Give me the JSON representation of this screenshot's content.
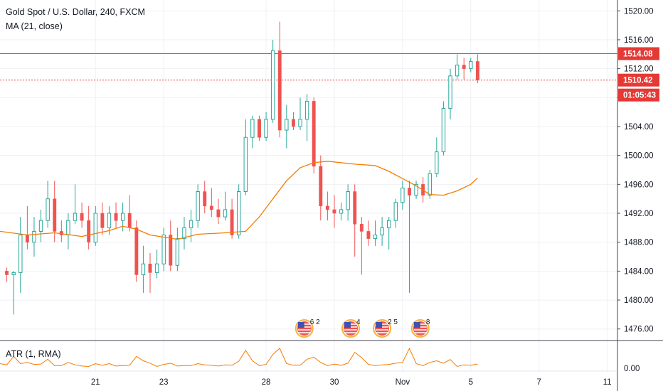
{
  "legend": {
    "symbol": "Gold Spot / U.S. Dollar, 240, FXCM",
    "ma": "MA (21, close)",
    "atr": "ATR (1, RMA)"
  },
  "colors": {
    "up": "#26a69a",
    "down": "#ef5350",
    "ma": "#f57c00",
    "atr": "#f57c00",
    "resistance": "#e53935",
    "grid": "#eef1f5",
    "axis_text": "#131722"
  },
  "price_tags": {
    "resistance": "1514.08",
    "last": "1510.42",
    "countdown": "01:05:43"
  },
  "events": [
    {
      "label": "6 2",
      "icon": "us-flag-icon",
      "x": 44.6
    },
    {
      "label": "4",
      "icon": "us-flag-icon",
      "x": 51.4
    },
    {
      "label": "2 5",
      "icon": "us-flag-icon",
      "x": 56.0
    },
    {
      "label": "8",
      "icon": "us-flag-icon",
      "x": 61.6
    }
  ],
  "chart_data": {
    "type": "candlestick",
    "title": "Gold Spot / U.S. Dollar, 240, FXCM",
    "y_ticks": [
      "1520.00",
      "1516.00",
      "1512.00",
      "1508.00",
      "1504.00",
      "1500.00",
      "1496.00",
      "1492.00",
      "1488.00",
      "1484.00",
      "1480.00",
      "1476.00"
    ],
    "y_tick_values": [
      1520,
      1516,
      1512,
      1508,
      1504,
      1500,
      1496,
      1492,
      1488,
      1484,
      1480,
      1476
    ],
    "ylim": [
      1474.5,
      1521.5
    ],
    "x_ticks": [
      {
        "label": "21",
        "x": 14
      },
      {
        "label": "23",
        "x": 24
      },
      {
        "label": "28",
        "x": 39
      },
      {
        "label": "30",
        "x": 49
      },
      {
        "label": "Nov",
        "x": 59
      },
      {
        "label": "5",
        "x": 69
      },
      {
        "label": "7",
        "x": 79
      },
      {
        "label": "11",
        "x": 89
      }
    ],
    "xlim": [
      0,
      90.5
    ],
    "grid": true,
    "candles": [
      [
        1,
        1484,
        1484.5,
        1482.5,
        1483.5
      ],
      [
        2,
        1483.5,
        1484,
        1478,
        1483.8
      ],
      [
        3,
        1483.8,
        1491.5,
        1481,
        1489
      ],
      [
        4,
        1489,
        1493,
        1487,
        1488
      ],
      [
        5,
        1488,
        1491.5,
        1486,
        1489.5
      ],
      [
        6,
        1489.5,
        1492.5,
        1488,
        1491
      ],
      [
        7,
        1491,
        1496.5,
        1490,
        1494
      ],
      [
        8,
        1494,
        1496.5,
        1488,
        1489.5
      ],
      [
        9,
        1489.5,
        1491,
        1488,
        1489
      ],
      [
        10,
        1489,
        1492,
        1487,
        1491
      ],
      [
        11,
        1491,
        1496,
        1490.5,
        1492
      ],
      [
        12,
        1492,
        1493.5,
        1490,
        1491
      ],
      [
        13,
        1491,
        1493,
        1487,
        1488
      ],
      [
        14,
        1488,
        1493,
        1487.5,
        1492
      ],
      [
        15,
        1492,
        1493.5,
        1489,
        1490
      ],
      [
        16,
        1490,
        1493,
        1489,
        1492
      ],
      [
        17,
        1492,
        1493.5,
        1490,
        1491
      ],
      [
        18,
        1491,
        1493.5,
        1489.5,
        1492
      ],
      [
        19,
        1492,
        1494.5,
        1489.5,
        1490
      ],
      [
        20,
        1490,
        1491,
        1482.5,
        1483.5
      ],
      [
        21,
        1483.5,
        1487.5,
        1481,
        1485
      ],
      [
        22,
        1485,
        1486.5,
        1481,
        1483.8
      ],
      [
        23,
        1483.8,
        1487,
        1483,
        1485
      ],
      [
        24,
        1485,
        1490,
        1484,
        1489
      ],
      [
        25,
        1489,
        1491,
        1484,
        1484.8
      ],
      [
        26,
        1484.8,
        1490,
        1484,
        1488.5
      ],
      [
        27,
        1488.5,
        1491.5,
        1487,
        1490
      ],
      [
        28,
        1490,
        1492.5,
        1488,
        1491
      ],
      [
        29,
        1491,
        1496,
        1490,
        1495
      ],
      [
        30,
        1495,
        1496.5,
        1492,
        1493
      ],
      [
        31,
        1493,
        1495.5,
        1491.5,
        1492.5
      ],
      [
        32,
        1492.5,
        1494,
        1490.5,
        1491.5
      ],
      [
        33,
        1491.5,
        1495,
        1491,
        1492.5
      ],
      [
        34,
        1492.5,
        1494,
        1488.5,
        1489
      ],
      [
        35,
        1489,
        1496,
        1488.5,
        1495
      ],
      [
        36,
        1495,
        1505,
        1494.5,
        1502.5
      ],
      [
        37,
        1502.5,
        1505.5,
        1501,
        1505
      ],
      [
        38,
        1505,
        1505.5,
        1502,
        1502.5
      ],
      [
        39,
        1502.5,
        1506,
        1502,
        1505
      ],
      [
        40,
        1505,
        1516,
        1504.5,
        1514.5
      ],
      [
        41,
        1514.5,
        1518.5,
        1502.5,
        1503.5
      ],
      [
        42,
        1503.5,
        1507,
        1501,
        1505
      ],
      [
        43,
        1505,
        1506,
        1503.5,
        1504
      ],
      [
        44,
        1504,
        1508,
        1503.5,
        1505
      ],
      [
        45,
        1505,
        1508.5,
        1502,
        1507.5
      ],
      [
        46,
        1507.5,
        1508,
        1497.5,
        1498.5
      ],
      [
        47,
        1498.5,
        1500,
        1491,
        1493
      ],
      [
        48,
        1493,
        1495,
        1491,
        1492.5
      ],
      [
        49,
        1492.5,
        1494.5,
        1490,
        1492
      ],
      [
        50,
        1492,
        1493.5,
        1491,
        1492.5
      ],
      [
        51,
        1492.5,
        1496,
        1491,
        1495
      ],
      [
        52,
        1495,
        1496,
        1486,
        1490.5
      ],
      [
        53,
        1490.5,
        1491.5,
        1483.5,
        1489.5
      ],
      [
        54,
        1489.5,
        1491,
        1487.5,
        1488.5
      ],
      [
        55,
        1488.5,
        1491,
        1487.5,
        1489
      ],
      [
        56,
        1489,
        1491.5,
        1487.5,
        1490
      ],
      [
        57,
        1490,
        1491.5,
        1487,
        1491
      ],
      [
        58,
        1491,
        1494,
        1490,
        1493.5
      ],
      [
        59,
        1493.5,
        1496.5,
        1492.5,
        1495.5
      ],
      [
        60,
        1495.5,
        1496.5,
        1481,
        1494.5
      ],
      [
        61,
        1494.5,
        1496.5,
        1494,
        1496
      ],
      [
        62,
        1496,
        1497,
        1493.5,
        1494.5
      ],
      [
        63,
        1494.5,
        1498,
        1494,
        1497.5
      ],
      [
        64,
        1497.5,
        1502.5,
        1497,
        1500.5
      ],
      [
        65,
        1500.5,
        1507.5,
        1500,
        1506.5
      ],
      [
        66,
        1506.5,
        1512,
        1505,
        1511
      ],
      [
        67,
        1511,
        1514,
        1510.5,
        1512.5
      ],
      [
        68,
        1512.5,
        1513.5,
        1510.5,
        1512
      ],
      [
        69,
        1512,
        1513.5,
        1511.5,
        1513
      ],
      [
        70,
        1513,
        1514,
        1510,
        1510.42
      ]
    ],
    "ma": [
      [
        0,
        1489.5
      ],
      [
        4,
        1489
      ],
      [
        8,
        1489.3
      ],
      [
        12,
        1488.8
      ],
      [
        16,
        1489.6
      ],
      [
        18,
        1490.2
      ],
      [
        20,
        1489.8
      ],
      [
        22,
        1489
      ],
      [
        26,
        1488.4
      ],
      [
        29,
        1489.1
      ],
      [
        33,
        1489.3
      ],
      [
        36,
        1489.5
      ],
      [
        38,
        1491.5
      ],
      [
        40,
        1494
      ],
      [
        42,
        1496.5
      ],
      [
        44,
        1498.3
      ],
      [
        46,
        1499
      ],
      [
        48,
        1499.2
      ],
      [
        52,
        1498.8
      ],
      [
        55,
        1498.6
      ],
      [
        57,
        1497.8
      ],
      [
        59,
        1496.8
      ],
      [
        61,
        1495.8
      ],
      [
        63,
        1494.6
      ],
      [
        65,
        1494.5
      ],
      [
        67,
        1495.1
      ],
      [
        69,
        1496
      ],
      [
        70,
        1496.9
      ]
    ],
    "atr": [
      1.5,
      1.2,
      3.3,
      1.5,
      1.8,
      1.3,
      1.4,
      2.6,
      1,
      1,
      1.8,
      1.2,
      0.9,
      0.8,
      1.5,
      1.1,
      1.5,
      0.9,
      1,
      1.1,
      3.3,
      2.2,
      1.6,
      0.8,
      1.3,
      1.6,
      0.9,
      1,
      1,
      1.5,
      1.2,
      1.1,
      0.9,
      1.2,
      1.1,
      2.1,
      4.8,
      2.2,
      1,
      1.3,
      3.8,
      5.3,
      1.5,
      1.1,
      1.1,
      2.6,
      3.1,
      1.8,
      1,
      1.4,
      1.1,
      1.6,
      4.3,
      3,
      1.3,
      1,
      1.2,
      1.3,
      1.6,
      1.8,
      5.3,
      1.5,
      1,
      1.8,
      2.2,
      1.6,
      2.5,
      0.8,
      1.2,
      1.1,
      1.4
    ],
    "atr_ylim": [
      0,
      6
    ],
    "atr_tick": "0.00",
    "hlines": [
      {
        "value": 1514.08,
        "style": "solid",
        "color": "#e53935"
      },
      {
        "value": 1510.42,
        "style": "dotted",
        "color": "#e53935"
      }
    ]
  }
}
